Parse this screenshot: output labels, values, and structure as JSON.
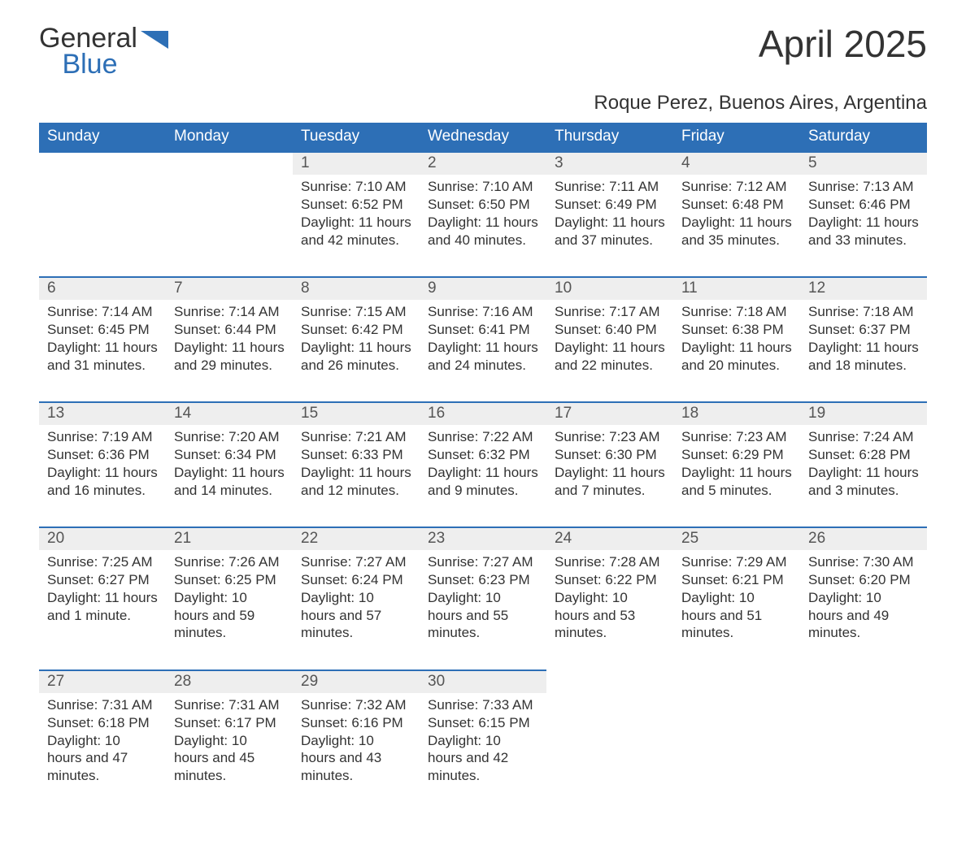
{
  "logo": {
    "word1": "General",
    "word2": "Blue",
    "wedge_color": "#2d6fb6"
  },
  "title": "April 2025",
  "subtitle": "Roque Perez, Buenos Aires, Argentina",
  "colors": {
    "header_bg": "#2d6fb6",
    "header_text": "#ffffff",
    "daynum_bg": "#eeeeee",
    "row_border": "#2d6fb6",
    "body_text": "#333333",
    "page_bg": "#ffffff"
  },
  "typography": {
    "title_fontsize": 46,
    "subtitle_fontsize": 24,
    "header_fontsize": 19,
    "daynum_fontsize": 19,
    "cell_fontsize": 17,
    "font_family": "Segoe UI"
  },
  "calendar": {
    "columns": [
      "Sunday",
      "Monday",
      "Tuesday",
      "Wednesday",
      "Thursday",
      "Friday",
      "Saturday"
    ],
    "weeks": [
      [
        null,
        null,
        {
          "n": "1",
          "sunrise": "7:10 AM",
          "sunset": "6:52 PM",
          "daylight": "11 hours and 42 minutes."
        },
        {
          "n": "2",
          "sunrise": "7:10 AM",
          "sunset": "6:50 PM",
          "daylight": "11 hours and 40 minutes."
        },
        {
          "n": "3",
          "sunrise": "7:11 AM",
          "sunset": "6:49 PM",
          "daylight": "11 hours and 37 minutes."
        },
        {
          "n": "4",
          "sunrise": "7:12 AM",
          "sunset": "6:48 PM",
          "daylight": "11 hours and 35 minutes."
        },
        {
          "n": "5",
          "sunrise": "7:13 AM",
          "sunset": "6:46 PM",
          "daylight": "11 hours and 33 minutes."
        }
      ],
      [
        {
          "n": "6",
          "sunrise": "7:14 AM",
          "sunset": "6:45 PM",
          "daylight": "11 hours and 31 minutes."
        },
        {
          "n": "7",
          "sunrise": "7:14 AM",
          "sunset": "6:44 PM",
          "daylight": "11 hours and 29 minutes."
        },
        {
          "n": "8",
          "sunrise": "7:15 AM",
          "sunset": "6:42 PM",
          "daylight": "11 hours and 26 minutes."
        },
        {
          "n": "9",
          "sunrise": "7:16 AM",
          "sunset": "6:41 PM",
          "daylight": "11 hours and 24 minutes."
        },
        {
          "n": "10",
          "sunrise": "7:17 AM",
          "sunset": "6:40 PM",
          "daylight": "11 hours and 22 minutes."
        },
        {
          "n": "11",
          "sunrise": "7:18 AM",
          "sunset": "6:38 PM",
          "daylight": "11 hours and 20 minutes."
        },
        {
          "n": "12",
          "sunrise": "7:18 AM",
          "sunset": "6:37 PM",
          "daylight": "11 hours and 18 minutes."
        }
      ],
      [
        {
          "n": "13",
          "sunrise": "7:19 AM",
          "sunset": "6:36 PM",
          "daylight": "11 hours and 16 minutes."
        },
        {
          "n": "14",
          "sunrise": "7:20 AM",
          "sunset": "6:34 PM",
          "daylight": "11 hours and 14 minutes."
        },
        {
          "n": "15",
          "sunrise": "7:21 AM",
          "sunset": "6:33 PM",
          "daylight": "11 hours and 12 minutes."
        },
        {
          "n": "16",
          "sunrise": "7:22 AM",
          "sunset": "6:32 PM",
          "daylight": "11 hours and 9 minutes."
        },
        {
          "n": "17",
          "sunrise": "7:23 AM",
          "sunset": "6:30 PM",
          "daylight": "11 hours and 7 minutes."
        },
        {
          "n": "18",
          "sunrise": "7:23 AM",
          "sunset": "6:29 PM",
          "daylight": "11 hours and 5 minutes."
        },
        {
          "n": "19",
          "sunrise": "7:24 AM",
          "sunset": "6:28 PM",
          "daylight": "11 hours and 3 minutes."
        }
      ],
      [
        {
          "n": "20",
          "sunrise": "7:25 AM",
          "sunset": "6:27 PM",
          "daylight": "11 hours and 1 minute."
        },
        {
          "n": "21",
          "sunrise": "7:26 AM",
          "sunset": "6:25 PM",
          "daylight": "10 hours and 59 minutes."
        },
        {
          "n": "22",
          "sunrise": "7:27 AM",
          "sunset": "6:24 PM",
          "daylight": "10 hours and 57 minutes."
        },
        {
          "n": "23",
          "sunrise": "7:27 AM",
          "sunset": "6:23 PM",
          "daylight": "10 hours and 55 minutes."
        },
        {
          "n": "24",
          "sunrise": "7:28 AM",
          "sunset": "6:22 PM",
          "daylight": "10 hours and 53 minutes."
        },
        {
          "n": "25",
          "sunrise": "7:29 AM",
          "sunset": "6:21 PM",
          "daylight": "10 hours and 51 minutes."
        },
        {
          "n": "26",
          "sunrise": "7:30 AM",
          "sunset": "6:20 PM",
          "daylight": "10 hours and 49 minutes."
        }
      ],
      [
        {
          "n": "27",
          "sunrise": "7:31 AM",
          "sunset": "6:18 PM",
          "daylight": "10 hours and 47 minutes."
        },
        {
          "n": "28",
          "sunrise": "7:31 AM",
          "sunset": "6:17 PM",
          "daylight": "10 hours and 45 minutes."
        },
        {
          "n": "29",
          "sunrise": "7:32 AM",
          "sunset": "6:16 PM",
          "daylight": "10 hours and 43 minutes."
        },
        {
          "n": "30",
          "sunrise": "7:33 AM",
          "sunset": "6:15 PM",
          "daylight": "10 hours and 42 minutes."
        },
        null,
        null,
        null
      ]
    ],
    "labels": {
      "sunrise": "Sunrise:",
      "sunset": "Sunset:",
      "daylight": "Daylight:"
    }
  }
}
